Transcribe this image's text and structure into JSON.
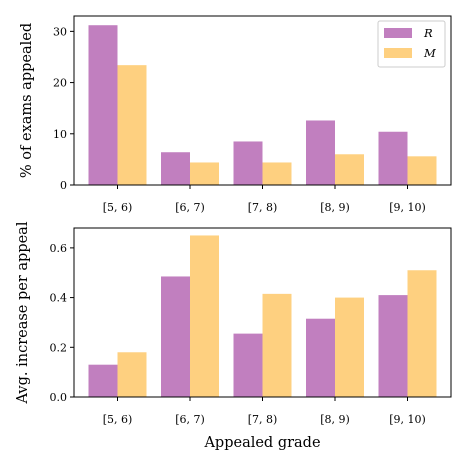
{
  "chart_data": [
    {
      "type": "bar",
      "categories": [
        "[5, 6)",
        "[6, 7)",
        "[7, 8)",
        "[8, 9)",
        "[9, 10)"
      ],
      "series": [
        {
          "name": "R",
          "color": "#c17fbf",
          "values": [
            31.2,
            6.4,
            8.5,
            12.6,
            10.4
          ]
        },
        {
          "name": "M",
          "color": "#fed080",
          "values": [
            23.4,
            4.4,
            4.4,
            6.0,
            5.6
          ]
        }
      ],
      "xlabel": "",
      "ylabel": "% of exams appealed",
      "ylim": [
        0,
        33
      ],
      "yticks": [
        0,
        10,
        20,
        30
      ],
      "legend": "top-right"
    },
    {
      "type": "bar",
      "categories": [
        "[5, 6)",
        "[6, 7)",
        "[7, 8)",
        "[8, 9)",
        "[9, 10)"
      ],
      "series": [
        {
          "name": "R",
          "color": "#c17fbf",
          "values": [
            0.13,
            0.485,
            0.255,
            0.315,
            0.41
          ]
        },
        {
          "name": "M",
          "color": "#fed080",
          "values": [
            0.18,
            0.65,
            0.415,
            0.4,
            0.51
          ]
        }
      ],
      "xlabel": "Appealed grade",
      "ylabel": "Avg. increase per appeal",
      "ylim": [
        0,
        0.68
      ],
      "yticks": [
        0.0,
        0.2,
        0.4,
        0.6
      ]
    }
  ]
}
